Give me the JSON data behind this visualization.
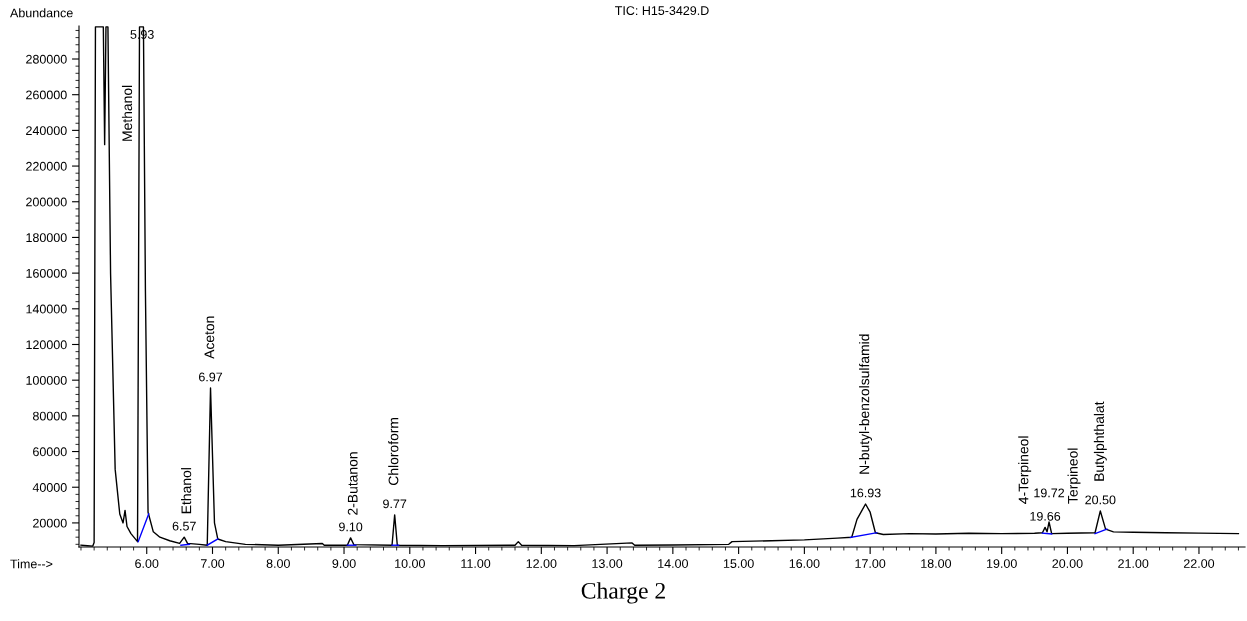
{
  "chart_data": {
    "type": "line",
    "title": "TIC: H15-3429.D",
    "xlabel": "Time-->",
    "ylabel": "Abundance",
    "xlim": [
      4.97,
      22.7
    ],
    "ylim": [
      6500,
      298500
    ],
    "xticks": [
      {
        "value": 6,
        "label": "6.00"
      },
      {
        "value": 7,
        "label": "7.00"
      },
      {
        "value": 8,
        "label": "8.00"
      },
      {
        "value": 9,
        "label": "9.00"
      },
      {
        "value": 10,
        "label": "10.00"
      },
      {
        "value": 11,
        "label": "11.00"
      },
      {
        "value": 12,
        "label": "12.00"
      },
      {
        "value": 13,
        "label": "13.00"
      },
      {
        "value": 14,
        "label": "14.00"
      },
      {
        "value": 15,
        "label": "15.00"
      },
      {
        "value": 16,
        "label": "16.00"
      },
      {
        "value": 17,
        "label": "17.00"
      },
      {
        "value": 18,
        "label": "18.00"
      },
      {
        "value": 19,
        "label": "19.00"
      },
      {
        "value": 20,
        "label": "20.00"
      },
      {
        "value": 21,
        "label": "21.00"
      },
      {
        "value": 22,
        "label": "22.00"
      }
    ],
    "yticks": [
      20000,
      40000,
      60000,
      80000,
      100000,
      120000,
      140000,
      160000,
      180000,
      200000,
      220000,
      240000,
      260000,
      280000
    ],
    "grid": false,
    "marker": "none",
    "line_style": "solid",
    "series": [
      {
        "color": "#000000",
        "x": [
          5.0,
          5.1,
          5.18,
          5.2,
          5.22,
          5.34,
          5.36,
          5.38,
          5.41,
          5.45,
          5.52,
          5.59,
          5.64,
          5.67,
          5.7,
          5.76,
          5.86,
          5.89,
          5.95,
          5.98,
          6.02,
          6.1,
          6.2,
          6.35,
          6.5,
          6.57,
          6.62,
          6.8,
          6.92,
          6.97,
          7.03,
          7.08,
          7.2,
          7.5,
          8.0,
          8.67,
          8.7,
          9.05,
          9.1,
          9.15,
          9.73,
          9.77,
          9.81,
          10.5,
          11.6,
          11.65,
          11.7,
          12.5,
          13.38,
          13.42,
          14.0,
          14.85,
          14.9,
          15.5,
          16.0,
          16.5,
          16.72,
          16.8,
          16.93,
          17.0,
          17.08,
          17.2,
          17.6,
          18.0,
          18.5,
          19.0,
          19.5,
          19.62,
          19.66,
          19.69,
          19.72,
          19.76,
          20.0,
          20.42,
          20.5,
          20.58,
          20.7,
          21.0,
          21.5,
          22.0,
          22.6
        ],
        "values": [
          7500,
          7200,
          7000,
          9000,
          298000,
          298000,
          232000,
          298000,
          298000,
          160000,
          50000,
          25000,
          20000,
          27000,
          18000,
          14000,
          9500,
          298000,
          298000,
          150000,
          26000,
          15000,
          12000,
          10000,
          8500,
          12000,
          8500,
          8000,
          7500,
          95600,
          20000,
          11000,
          9500,
          8000,
          7500,
          8500,
          7500,
          7500,
          11600,
          7800,
          7500,
          24500,
          7500,
          7300,
          7500,
          9500,
          7500,
          7300,
          8800,
          7500,
          7600,
          8000,
          9500,
          10000,
          10500,
          11500,
          12000,
          22000,
          30600,
          26000,
          14500,
          13500,
          14000,
          13800,
          14200,
          14000,
          14200,
          14500,
          17500,
          15000,
          20500,
          14000,
          14200,
          14500,
          26700,
          16500,
          15000,
          14800,
          14500,
          14300,
          14000
        ]
      },
      {
        "color": "#0000ff",
        "x": [
          5.87,
          6.03
        ],
        "values": [
          9500,
          25000
        ]
      },
      {
        "color": "#0000ff",
        "x": [
          6.52,
          6.65
        ],
        "values": [
          7500,
          8000
        ]
      },
      {
        "color": "#0000ff",
        "x": [
          6.92,
          7.08
        ],
        "values": [
          7500,
          11000
        ]
      },
      {
        "color": "#0000ff",
        "x": [
          9.05,
          9.18
        ],
        "values": [
          7500,
          7500
        ]
      },
      {
        "color": "#0000ff",
        "x": [
          9.73,
          9.83
        ],
        "values": [
          7500,
          7500
        ]
      },
      {
        "color": "#0000ff",
        "x": [
          16.7,
          17.1
        ],
        "values": [
          11800,
          14500
        ]
      },
      {
        "color": "#0000ff",
        "x": [
          19.62,
          19.76
        ],
        "values": [
          14300,
          13800
        ]
      },
      {
        "color": "#0000ff",
        "x": [
          20.42,
          20.6
        ],
        "values": [
          14000,
          16500
        ]
      }
    ],
    "annotations": [
      {
        "text": "5.93",
        "x": 5.93,
        "y": 298000
      },
      {
        "text": "Methanol",
        "x": 5.883,
        "y": 233500
      },
      {
        "text": "6.57",
        "x": 6.57,
        "y": 12000
      },
      {
        "text": "Ethanol",
        "x": 6.62,
        "y": 8500
      },
      {
        "text": "6.97",
        "x": 6.97,
        "y": 95600
      },
      {
        "text": "Aceton",
        "x": 6.97,
        "y": 95600
      },
      {
        "text": "9.10",
        "x": 9.1,
        "y": 11600
      },
      {
        "text": "2-Butanon",
        "x": 9.15,
        "y": 7800
      },
      {
        "text": "9.77",
        "x": 9.77,
        "y": 24500
      },
      {
        "text": "Chloroform",
        "x": 9.77,
        "y": 24500
      },
      {
        "text": "16.93",
        "x": 16.93,
        "y": 30600
      },
      {
        "text": "N-butyl-benzolsulfamid",
        "x": 16.93,
        "y": 30600
      },
      {
        "text": "19.66",
        "x": 19.66,
        "y": 17500
      },
      {
        "text": "4-Terpineol",
        "x": 19.35,
        "y": 14140
      },
      {
        "text": "19.72",
        "x": 19.72,
        "y": 20500
      },
      {
        "text": "Terpineol",
        "x": 20.1,
        "y": 14271
      },
      {
        "text": "20.50",
        "x": 20.5,
        "y": 26700
      },
      {
        "text": "Butylphthalat",
        "x": 20.5,
        "y": 26700
      },
      "Charge 2"
    ]
  }
}
